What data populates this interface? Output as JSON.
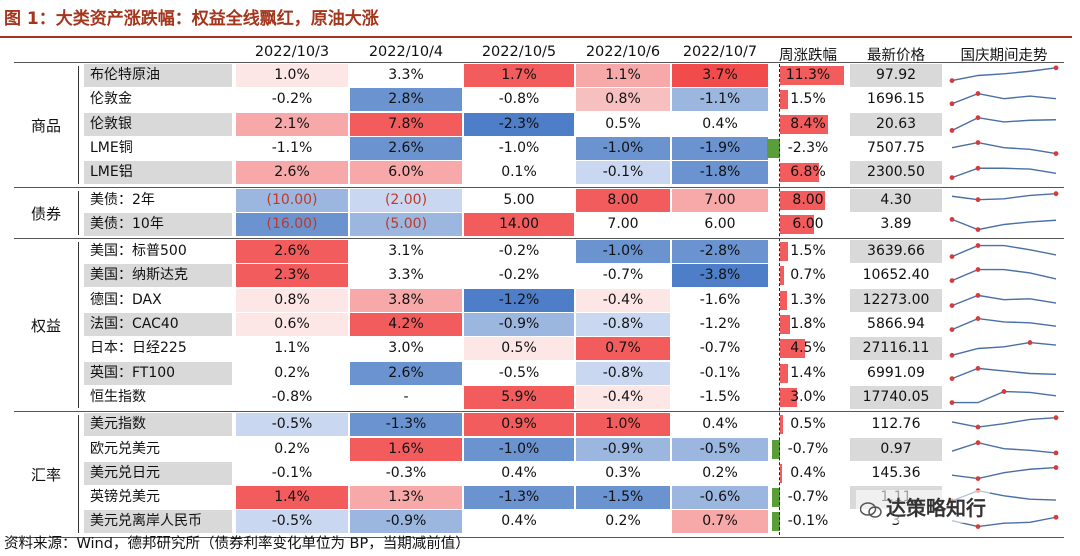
{
  "title": "图 1：大类资产涨跌幅：权益全线飘红，原油大涨",
  "headers": [
    "2022/10/3",
    "2022/10/4",
    "2022/10/5",
    "2022/10/6",
    "2022/10/7",
    "周涨跌幅",
    "最新价格",
    "国庆期间走势"
  ],
  "categories": [
    "商品",
    "债券",
    "权益",
    "汇率"
  ],
  "rows": [
    {
      "name": "布伦特原油",
      "cat": 0,
      "vals": [
        "1.0%",
        "3.3%",
        "1.7%",
        "1.1%",
        "3.7%"
      ],
      "colors": [
        "#fde6e6",
        "#ffffff",
        "#f25c5c",
        "#f7a8a8",
        "#f24b4b"
      ],
      "week": "11.3%",
      "wkv": 11.3,
      "price": "97.92",
      "pricebg": "#d9d9d9",
      "spark": [
        0.2,
        0.5,
        0.6,
        0.75,
        0.95
      ]
    },
    {
      "name": "伦敦金",
      "cat": 0,
      "vals": [
        "-0.2%",
        "2.8%",
        "-0.8%",
        "0.8%",
        "-1.1%"
      ],
      "colors": [
        "#ffffff",
        "#6a93d0",
        "#ffffff",
        "#f7c0c0",
        "#9bb7e0"
      ],
      "week": "1.5%",
      "wkv": 1.5,
      "price": "1696.15",
      "pricebg": "#ffffff",
      "spark": [
        0.25,
        0.85,
        0.55,
        0.7,
        0.55
      ]
    },
    {
      "name": "伦敦银",
      "cat": 0,
      "vals": [
        "2.1%",
        "7.8%",
        "-2.3%",
        "0.5%",
        "0.4%"
      ],
      "colors": [
        "#f7a8a8",
        "#f25c5c",
        "#4f7ec8",
        "#ffffff",
        "#ffffff"
      ],
      "week": "8.4%",
      "wkv": 8.4,
      "price": "20.63",
      "pricebg": "#d9d9d9",
      "spark": [
        0.15,
        0.9,
        0.65,
        0.75,
        0.78
      ]
    },
    {
      "name": "LME铜",
      "cat": 0,
      "vals": [
        "-1.1%",
        "2.6%",
        "-1.0%",
        "-1.0%",
        "-1.9%"
      ],
      "colors": [
        "#ffffff",
        "#6a93d0",
        "#ffffff",
        "#6a93d0",
        "#6a93d0"
      ],
      "week": "-2.3%",
      "wkv": -2.3,
      "price": "7507.75",
      "pricebg": "#ffffff",
      "spark": [
        0.55,
        0.85,
        0.55,
        0.45,
        0.2
      ]
    },
    {
      "name": "LME铝",
      "cat": 0,
      "vals": [
        "2.6%",
        "6.0%",
        "0.1%",
        "-0.1%",
        "-1.8%"
      ],
      "colors": [
        "#f7a8a8",
        "#f7a8a8",
        "#ffffff",
        "#c9d8f0",
        "#6a93d0"
      ],
      "week": "6.8%",
      "wkv": 6.8,
      "price": "2300.50",
      "pricebg": "#d9d9d9",
      "spark": [
        0.2,
        0.75,
        0.75,
        0.7,
        0.45
      ]
    },
    {
      "name": "美债：2年",
      "cat": 1,
      "vals": [
        "(10.00)",
        "(2.00)",
        "5.00",
        "8.00",
        "7.00"
      ],
      "colors": [
        "#9bb7e0",
        "#c9d8f0",
        "#ffffff",
        "#f25c5c",
        "#f7a8a8"
      ],
      "redtext": [
        true,
        true,
        false,
        false,
        false
      ],
      "week": "8.00",
      "wkv": 8.0,
      "price": "4.30",
      "pricebg": "#d9d9d9",
      "spark": [
        0.75,
        0.55,
        0.6,
        0.8,
        0.9
      ]
    },
    {
      "name": "美债：10年",
      "cat": 1,
      "vals": [
        "(16.00)",
        "(5.00)",
        "14.00",
        "7.00",
        "6.00"
      ],
      "colors": [
        "#6a93d0",
        "#9bb7e0",
        "#f25c5c",
        "#ffffff",
        "#ffffff"
      ],
      "redtext": [
        true,
        true,
        false,
        false,
        false
      ],
      "week": "6.00",
      "wkv": 6.0,
      "price": "3.89",
      "pricebg": "#ffffff",
      "spark": [
        0.8,
        0.2,
        0.5,
        0.65,
        0.75
      ]
    },
    {
      "name": "美国：标普500",
      "cat": 2,
      "vals": [
        "2.6%",
        "3.1%",
        "-0.2%",
        "-1.0%",
        "-2.8%"
      ],
      "colors": [
        "#f25c5c",
        "#ffffff",
        "#ffffff",
        "#6a93d0",
        "#6a93d0"
      ],
      "week": "1.5%",
      "wkv": 1.5,
      "price": "3639.66",
      "pricebg": "#d9d9d9",
      "spark": [
        0.2,
        0.85,
        0.85,
        0.6,
        0.3
      ]
    },
    {
      "name": "美国：纳斯达克",
      "cat": 2,
      "vals": [
        "2.3%",
        "3.3%",
        "-0.2%",
        "-0.7%",
        "-3.8%"
      ],
      "colors": [
        "#f25c5c",
        "#ffffff",
        "#ffffff",
        "#ffffff",
        "#4f7ec8"
      ],
      "week": "0.7%",
      "wkv": 0.7,
      "price": "10652.40",
      "pricebg": "#ffffff",
      "spark": [
        0.2,
        0.85,
        0.85,
        0.65,
        0.3
      ]
    },
    {
      "name": "德国：DAX",
      "cat": 2,
      "vals": [
        "0.8%",
        "3.8%",
        "-1.2%",
        "-0.4%",
        "-1.6%"
      ],
      "colors": [
        "#fde6e6",
        "#f7a8a8",
        "#4f7ec8",
        "#fde6e6",
        "#ffffff"
      ],
      "week": "1.3%",
      "wkv": 1.3,
      "price": "12273.00",
      "pricebg": "#d9d9d9",
      "spark": [
        0.2,
        0.8,
        0.55,
        0.6,
        0.35
      ]
    },
    {
      "name": "法国：CAC40",
      "cat": 2,
      "vals": [
        "0.6%",
        "4.2%",
        "-0.9%",
        "-0.8%",
        "-1.2%"
      ],
      "colors": [
        "#fde6e6",
        "#f25c5c",
        "#9bb7e0",
        "#c9d8f0",
        "#ffffff"
      ],
      "week": "1.8%",
      "wkv": 1.8,
      "price": "5866.94",
      "pricebg": "#ffffff",
      "spark": [
        0.2,
        0.85,
        0.65,
        0.6,
        0.4
      ]
    },
    {
      "name": "日本：日经225",
      "cat": 2,
      "vals": [
        "1.1%",
        "3.0%",
        "0.5%",
        "0.7%",
        "-0.7%"
      ],
      "colors": [
        "#ffffff",
        "#ffffff",
        "#fde6e6",
        "#f25c5c",
        "#ffffff"
      ],
      "week": "4.5%",
      "wkv": 4.5,
      "price": "27116.11",
      "pricebg": "#d9d9d9",
      "spark": [
        0.1,
        0.5,
        0.6,
        0.85,
        0.7
      ]
    },
    {
      "name": "英国：FT100",
      "cat": 2,
      "vals": [
        "0.2%",
        "2.6%",
        "-0.5%",
        "-0.8%",
        "-0.1%"
      ],
      "colors": [
        "#ffffff",
        "#6a93d0",
        "#ffffff",
        "#c9d8f0",
        "#ffffff"
      ],
      "week": "1.4%",
      "wkv": 1.4,
      "price": "6991.09",
      "pricebg": "#ffffff",
      "spark": [
        0.2,
        0.8,
        0.65,
        0.5,
        0.45
      ]
    },
    {
      "name": "恒生指数",
      "cat": 2,
      "vals": [
        "-0.8%",
        "-",
        "5.9%",
        "-0.4%",
        "-1.5%"
      ],
      "colors": [
        "#ffffff",
        "#ffffff",
        "#f25c5c",
        "#fde6e6",
        "#ffffff"
      ],
      "week": "3.0%",
      "wkv": 3.0,
      "price": "17740.05",
      "pricebg": "#d9d9d9",
      "spark": [
        0.2,
        0.2,
        0.85,
        0.8,
        0.6
      ]
    },
    {
      "name": "美元指数",
      "cat": 3,
      "vals": [
        "-0.5%",
        "-1.3%",
        "0.9%",
        "1.0%",
        "0.4%"
      ],
      "colors": [
        "#c9d8f0",
        "#6a93d0",
        "#f25c5c",
        "#f25c5c",
        "#ffffff"
      ],
      "week": "0.5%",
      "wkv": 0.5,
      "price": "112.76",
      "pricebg": "#ffffff",
      "spark": [
        0.65,
        0.35,
        0.55,
        0.8,
        0.9
      ]
    },
    {
      "name": "欧元兑美元",
      "cat": 3,
      "vals": [
        "0.2%",
        "1.6%",
        "-1.0%",
        "-0.9%",
        "-0.5%"
      ],
      "colors": [
        "#ffffff",
        "#f25c5c",
        "#6a93d0",
        "#9bb7e0",
        "#9bb7e0"
      ],
      "week": "-0.7%",
      "wkv": -0.7,
      "price": "0.97",
      "pricebg": "#d9d9d9",
      "spark": [
        0.4,
        0.9,
        0.55,
        0.45,
        0.3
      ]
    },
    {
      "name": "美元兑日元",
      "cat": 3,
      "vals": [
        "-0.1%",
        "-0.3%",
        "0.4%",
        "0.3%",
        "0.2%"
      ],
      "colors": [
        "#ffffff",
        "#ffffff",
        "#ffffff",
        "#ffffff",
        "#ffffff"
      ],
      "week": "0.4%",
      "wkv": 0.4,
      "price": "145.36",
      "pricebg": "#ffffff",
      "spark": [
        0.4,
        0.2,
        0.55,
        0.75,
        0.85
      ]
    },
    {
      "name": "英镑兑美元",
      "cat": 3,
      "vals": [
        "1.4%",
        "1.3%",
        "-1.3%",
        "-1.5%",
        "-0.6%"
      ],
      "colors": [
        "#f25c5c",
        "#f7a8a8",
        "#6a93d0",
        "#6a93d0",
        "#9bb7e0"
      ],
      "week": "-0.7%",
      "wkv": -0.7,
      "price": "1.11",
      "pricebg": "#d9d9d9",
      "spark": [
        0.3,
        0.9,
        0.6,
        0.4,
        0.35
      ]
    },
    {
      "name": "美元兑离岸人民币",
      "cat": 3,
      "vals": [
        "-0.5%",
        "-0.9%",
        "0.4%",
        "0.2%",
        "0.7%"
      ],
      "colors": [
        "#c9d8f0",
        "#9bb7e0",
        "#ffffff",
        "#ffffff",
        "#f7a8a8"
      ],
      "week": "-0.1%",
      "wkv": -0.1,
      "price": "3",
      "pricebg": "#ffffff",
      "spark": [
        0.55,
        0.2,
        0.4,
        0.45,
        0.75
      ]
    }
  ],
  "source": "资料来源：Wind，德邦研究所（债券利率变化单位为 BP，当期减前值）",
  "watermark": "达策略知行",
  "bar_colors": {
    "pos": "#f25c5c",
    "neg": "#5a9e3a"
  },
  "spark_colors": {
    "line": "#4a6fa5",
    "dot": "#d63a3a"
  }
}
